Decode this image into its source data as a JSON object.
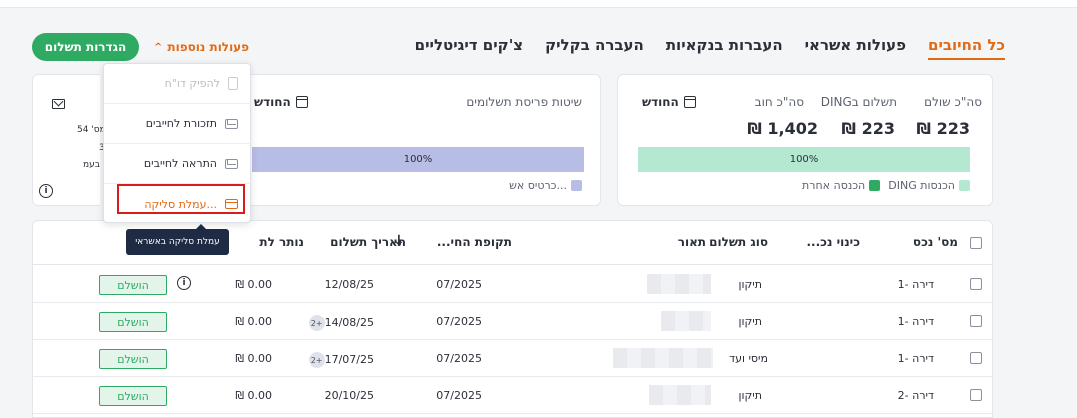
{
  "header": {
    "settings_button": "הגדרות תשלום",
    "more_actions": "פעולות נוספות",
    "tabs": [
      {
        "label": "כל החיובים",
        "active": true
      },
      {
        "label": "פעולות אשראי",
        "active": false
      },
      {
        "label": "העברות בנקאיות",
        "active": false
      },
      {
        "label": "העברה בקליק",
        "active": false
      },
      {
        "label": "צ'קים דיגיטליים",
        "active": false
      }
    ]
  },
  "summary_card": {
    "total_paid_label": "סה\"כ שולם",
    "total_paid_value": "223 ₪",
    "ding_label": "תשלום בDING",
    "ding_value": "223 ₪",
    "debt_label": "סה\"כ חוב",
    "debt_value": "1,402 ₪",
    "month": "החודש",
    "bar_percent": "100%",
    "legend": [
      "DING הכנסות",
      "הכנסה אחרת"
    ]
  },
  "methods_card": {
    "title": "שיטות פריסת תשלומים",
    "month": "החודש",
    "bar_percent": "100%",
    "legend": [
      "כרטיס אש..."
    ]
  },
  "left_card": {
    "line1": "מס' 54)",
    "line2": "3",
    "line3": "בעמ"
  },
  "dropdown": {
    "items": [
      {
        "label": "להפיק דו\"ח",
        "disabled": true
      },
      {
        "label": "תזכורת לחייבים",
        "disabled": false
      },
      {
        "label": "התראה לחייבים",
        "disabled": false
      },
      {
        "label": "עמלת סליקה...",
        "disabled": false
      }
    ],
    "tooltip": "עמלת סליקה באשראי"
  },
  "table": {
    "headers": {
      "asset": "מס' נכס",
      "nickname": "כינוי נכ...",
      "payment_type": "סוג תשלום",
      "description": "תאור",
      "period": "תקופת החי...",
      "payment_date": "תאריך תשלום",
      "remaining": "נותר לת"
    },
    "rows": [
      {
        "asset": "דירה -1",
        "payment_type": "תיקון",
        "period": "07/2025",
        "date": "12/08/25",
        "extra": "",
        "remaining": "0.00 ₪",
        "status": "הושלם",
        "info": true
      },
      {
        "asset": "דירה -1",
        "payment_type": "תיקון",
        "period": "07/2025",
        "date": "14/08/25",
        "extra": "+2",
        "remaining": "0.00 ₪",
        "status": "הושלם",
        "info": false
      },
      {
        "asset": "דירה -1",
        "payment_type": "מיסי ועד",
        "period": "07/2025",
        "date": "17/07/25",
        "extra": "+2",
        "remaining": "0.00 ₪",
        "status": "הושלם",
        "info": false
      },
      {
        "asset": "דירה -2",
        "payment_type": "תיקון",
        "period": "07/2025",
        "date": "20/10/25",
        "extra": "",
        "remaining": "0.00 ₪",
        "status": "הושלם",
        "info": false
      }
    ]
  },
  "colors": {
    "accent_orange": "#e26a12",
    "green": "#2eaa63",
    "bar_green": "#b5e8d0",
    "bar_purple": "#b8bde6",
    "tooltip_bg": "#1f2a44",
    "highlight_red": "#d81b1b"
  }
}
